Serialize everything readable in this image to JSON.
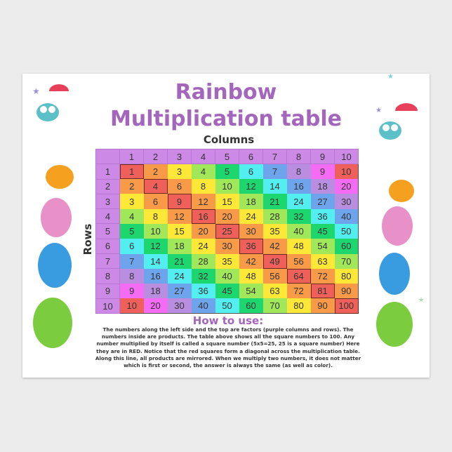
{
  "title_line1": "Rainbow",
  "title_line2": "Multiplication table",
  "columns_label": "Columns",
  "rows_label": "Rows",
  "howto_title": "How to use:",
  "howto_text": "The numbers along the left side and the top are factors (purple columns and rows). The numbers inside are products. The table above shows all the square numbers to 100. Any number multiplied by itself is called a square number (5x5=25, 25 is a square number) Here they are in RED. Notice that the red squares form a diagonal across the multiplication table. Along this line, all products are mirrored. When we multiply two numbers, it does not matter which is first or second, the answer is always the same (as well as color).",
  "factors": [
    1,
    2,
    3,
    4,
    5,
    6,
    7,
    8,
    9,
    10
  ],
  "colors": {
    "header": "#cc8ae6",
    "title": "#a466bc",
    "palette": [
      "#f0605a",
      "#f89a48",
      "#fde837",
      "#a0e85a",
      "#1ed66e",
      "#52eef0",
      "#6ea4ec",
      "#b98ee0",
      "#f46cf4"
    ]
  },
  "decorations": [
    "owl-icon",
    "umbrella-icon",
    "star-icon"
  ]
}
